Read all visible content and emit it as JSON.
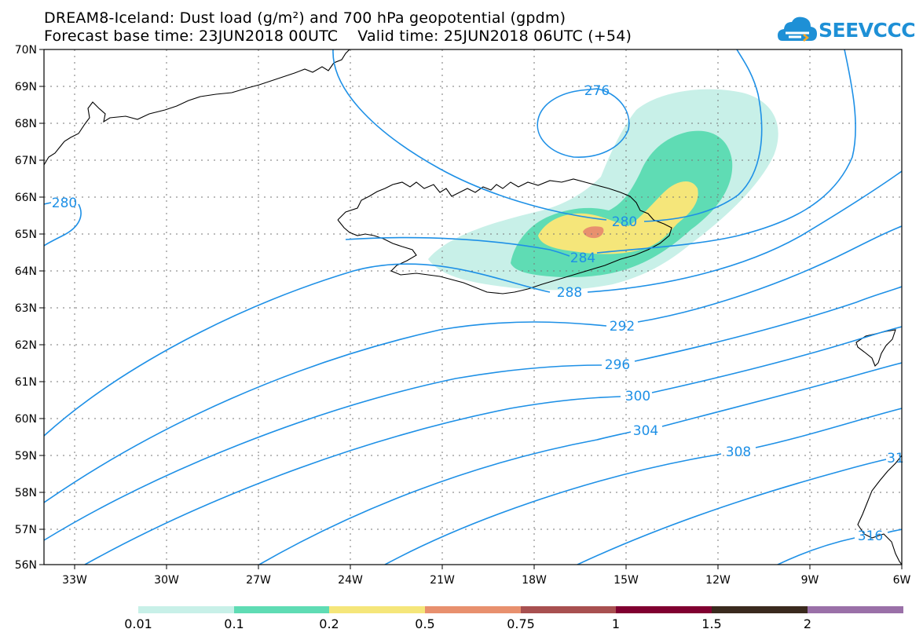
{
  "header": {
    "title_line1": "DREAM8-Iceland: Dust load (g/m²) and 700 hPa geopotential (gpdm)",
    "title_line2": "Forecast base time: 23JUN2018 00UTC    Valid time: 25JUN2018 06UTC (+54)",
    "logo_text": "SEEVCCC"
  },
  "map": {
    "lat_labels": [
      "70N",
      "69N",
      "68N",
      "67N",
      "66N",
      "65N",
      "64N",
      "63N",
      "62N",
      "61N",
      "60N",
      "59N",
      "58N",
      "57N",
      "56N"
    ],
    "lon_labels": [
      "33W",
      "30W",
      "27W",
      "24W",
      "21W",
      "18W",
      "15W",
      "12W",
      "9W",
      "6W"
    ],
    "contour_labels": [
      "276",
      "280",
      "280",
      "284",
      "288",
      "292",
      "296",
      "300",
      "304",
      "308",
      "31",
      "316"
    ],
    "contour_color": "#1e90e6"
  },
  "colorbar": {
    "labels": [
      "0.01",
      "0.1",
      "0.2",
      "0.5",
      "0.75",
      "1",
      "1.5",
      "2"
    ],
    "colors": [
      "#c8f0e8",
      "#5fdcb4",
      "#f5e67a",
      "#e8906e",
      "#a85050",
      "#800030",
      "#3a2a1e",
      "#9a70a8"
    ]
  }
}
